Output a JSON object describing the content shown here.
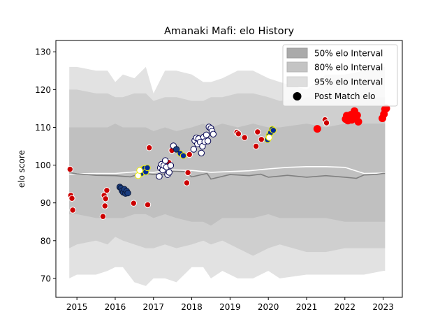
{
  "chart_data": {
    "type": "scatter",
    "title": "Amanaki Mafi: elo History",
    "xlabel": "",
    "ylabel": "elo score",
    "xlim": [
      2014.45,
      2023.5
    ],
    "ylim": [
      65,
      133
    ],
    "xticks": [
      {
        "value": 2015,
        "label": "2015"
      },
      {
        "value": 2016,
        "label": "2016"
      },
      {
        "value": 2017,
        "label": "2017"
      },
      {
        "value": 2018,
        "label": "2018"
      },
      {
        "value": 2019,
        "label": "2019"
      },
      {
        "value": 2020,
        "label": "2020"
      },
      {
        "value": 2021,
        "label": "2021"
      },
      {
        "value": 2022,
        "label": "2022"
      },
      {
        "value": 2023,
        "label": "2023"
      }
    ],
    "yticks": [
      {
        "value": 70,
        "label": "70"
      },
      {
        "value": 80,
        "label": "80"
      },
      {
        "value": 90,
        "label": "90"
      },
      {
        "value": 100,
        "label": "100"
      },
      {
        "value": 110,
        "label": "110"
      },
      {
        "value": 120,
        "label": "120"
      },
      {
        "value": 130,
        "label": "130"
      }
    ],
    "legend": {
      "placement": "top-right",
      "entries": [
        {
          "label": "50% elo Interval",
          "kind": "patch",
          "color": "#aaaaaa"
        },
        {
          "label": "80% elo Interval",
          "kind": "patch",
          "color": "#c4c4c4"
        },
        {
          "label": "95% elo Interval",
          "kind": "patch",
          "color": "#dedede"
        },
        {
          "label": "Post Match elo",
          "kind": "marker",
          "color": "#000000"
        }
      ]
    },
    "bands": {
      "x": [
        2014.8,
        2015.0,
        2015.5,
        2015.8,
        2016.0,
        2016.2,
        2016.5,
        2016.8,
        2017.0,
        2017.3,
        2017.6,
        2018.0,
        2018.3,
        2018.5,
        2018.8,
        2019.2,
        2019.6,
        2020.0,
        2020.3,
        2021.0,
        2021.5,
        2022.0,
        2022.5,
        2023.0,
        2023.05
      ],
      "p95_low": [
        70,
        71,
        71,
        72,
        73,
        73,
        69,
        68,
        70,
        70,
        69,
        73,
        73,
        70,
        72,
        70,
        70,
        72,
        70,
        71,
        71,
        71,
        71,
        72,
        72
      ],
      "p95_high": [
        126,
        126,
        125,
        125,
        122,
        124,
        123,
        126,
        119,
        125,
        125,
        124,
        122,
        122,
        123,
        125,
        125,
        123,
        122,
        120,
        124,
        124,
        125,
        126,
        126
      ],
      "p80_low": [
        78,
        79,
        80,
        79,
        81,
        80,
        79,
        78,
        78,
        79,
        78,
        79,
        80,
        79,
        80,
        78,
        76,
        78,
        79,
        77,
        77,
        78,
        78,
        78,
        78
      ],
      "p80_high": [
        120,
        120,
        119,
        119,
        118,
        118,
        119,
        119,
        117,
        118,
        118,
        117,
        117,
        118,
        118,
        119,
        119,
        118,
        117,
        118,
        118,
        119,
        118,
        118,
        118
      ],
      "p50_low": [
        87,
        87,
        86,
        86,
        86,
        86,
        87,
        87,
        86,
        87,
        86,
        85,
        85,
        84,
        86,
        86,
        86,
        87,
        86,
        86,
        86,
        85,
        85,
        85,
        85
      ],
      "p50_high": [
        110,
        110,
        110,
        110,
        111,
        110,
        110,
        110,
        109,
        110,
        109,
        110,
        111,
        110,
        111,
        110,
        111,
        110,
        110,
        111,
        110,
        111,
        111,
        111,
        111
      ]
    },
    "median_line": {
      "color": "#808080",
      "x": [
        2014.8,
        2015.0,
        2015.5,
        2016.0,
        2016.4,
        2016.7,
        2017.0,
        2017.3,
        2017.5,
        2017.8,
        2018.0,
        2018.4,
        2018.5,
        2019.0,
        2019.5,
        2019.8,
        2020.0,
        2020.5,
        2021.0,
        2021.5,
        2022.0,
        2022.3,
        2022.5,
        2022.8,
        2023.0,
        2023.05
      ],
      "y": [
        98,
        97.7,
        97.3,
        97.2,
        96.9,
        97.9,
        97.5,
        97.6,
        98.4,
        98.3,
        96.9,
        97.8,
        96.3,
        97.5,
        97.2,
        97.6,
        96.8,
        97.3,
        96.8,
        97.2,
        96.8,
        96.5,
        97.4,
        97.5,
        97.8,
        97.8
      ]
    },
    "mean_line": {
      "color": "#ffffff",
      "x": [
        2014.8,
        2015.0,
        2015.5,
        2016.0,
        2016.5,
        2017.0,
        2017.5,
        2018.0,
        2018.5,
        2019.0,
        2019.5,
        2020.0,
        2020.5,
        2021.0,
        2021.5,
        2022.0,
        2022.5,
        2023.0,
        2023.05
      ],
      "y": [
        97.6,
        97.7,
        97.8,
        97.8,
        98.2,
        98.1,
        98.7,
        98.6,
        98.1,
        98.3,
        98.5,
        99.0,
        99.4,
        99.6,
        99.6,
        99.4,
        97.8,
        97.9,
        97.9
      ]
    },
    "series": [
      {
        "name": "red-white-edge",
        "fill": "#cc0000",
        "edge": "#ffffff",
        "x": [
          2014.82,
          2014.84,
          2014.87,
          2014.89,
          2015.68,
          2015.71,
          2015.73,
          2015.75,
          2015.78,
          2016.48,
          2016.85,
          2016.89,
          2017.4,
          2017.48,
          2017.87,
          2017.9,
          2017.94,
          2019.18,
          2019.22,
          2019.38,
          2019.68,
          2019.72,
          2019.82,
          2021.48,
          2021.52
        ],
        "y": [
          98.9,
          92.0,
          91.2,
          88.1,
          86.4,
          92.0,
          89.2,
          91.1,
          93.3,
          89.9,
          89.5,
          104.6,
          100.7,
          103.9,
          95.3,
          98.0,
          102.8,
          108.7,
          108.3,
          107.3,
          105.0,
          108.8,
          106.8,
          112.0,
          111.2
        ]
      },
      {
        "name": "red-plain",
        "fill": "#ff0000",
        "edge": "#ff0000",
        "x": [
          2021.28,
          2022.02,
          2022.05,
          2022.08,
          2022.12,
          2022.15,
          2022.18,
          2022.22,
          2022.25,
          2022.28,
          2022.32,
          2022.35,
          2022.98,
          2023.02,
          2023.05,
          2023.08
        ],
        "y": [
          109.6,
          112.2,
          113.1,
          111.8,
          112.9,
          113.3,
          112.0,
          113.0,
          114.3,
          112.5,
          113.2,
          111.5,
          112.4,
          113.5,
          114.8,
          115.0
        ]
      },
      {
        "name": "white-navy-edge",
        "fill": "#ffffff",
        "edge": "#000050",
        "x": [
          2017.15,
          2017.18,
          2017.21,
          2017.24,
          2017.27,
          2017.31,
          2017.34,
          2017.37,
          2017.41,
          2017.45,
          2017.52,
          2018.05,
          2018.08,
          2018.12,
          2018.15,
          2018.18,
          2018.22,
          2018.25,
          2018.28,
          2018.31,
          2018.34,
          2018.38,
          2018.42,
          2018.45,
          2018.5,
          2018.53,
          2018.56
        ],
        "y": [
          97.0,
          99.3,
          100.2,
          98.7,
          99.9,
          101.2,
          99.5,
          97.5,
          98.1,
          99.9,
          105.1,
          104.2,
          106.5,
          107.2,
          105.6,
          107.0,
          106.1,
          103.2,
          105.0,
          107.4,
          106.2,
          108.0,
          106.4,
          110.1,
          109.7,
          109.0,
          108.2
        ]
      },
      {
        "name": "navy-yellow-edge",
        "fill": "#002b9a",
        "edge": "#f0f000",
        "x": [
          2016.68,
          2016.72,
          2016.76,
          2016.8,
          2016.84,
          2017.7,
          2017.78,
          2019.98,
          2020.02,
          2020.06,
          2020.1,
          2020.13
        ],
        "y": [
          97.8,
          98.9,
          99.1,
          98.2,
          99.3,
          103.1,
          102.5,
          106.7,
          107.9,
          108.6,
          109.5,
          109.2
        ]
      },
      {
        "name": "white-yellow-edge",
        "fill": "#ffffff",
        "edge": "#f0f000",
        "x": [
          2016.6,
          2016.64,
          2020.02
        ],
        "y": [
          97.2,
          98.6,
          107.3
        ]
      },
      {
        "name": "navy-dark-edge",
        "fill": "#1a3d80",
        "edge": "#0c1b3c",
        "x": [
          2016.12,
          2016.15,
          2016.18,
          2016.21,
          2016.24,
          2016.27,
          2016.3,
          2016.33,
          2017.6
        ],
        "y": [
          94.2,
          93.9,
          93.2,
          92.8,
          93.6,
          92.5,
          93.1,
          92.6,
          104.2
        ]
      }
    ]
  }
}
